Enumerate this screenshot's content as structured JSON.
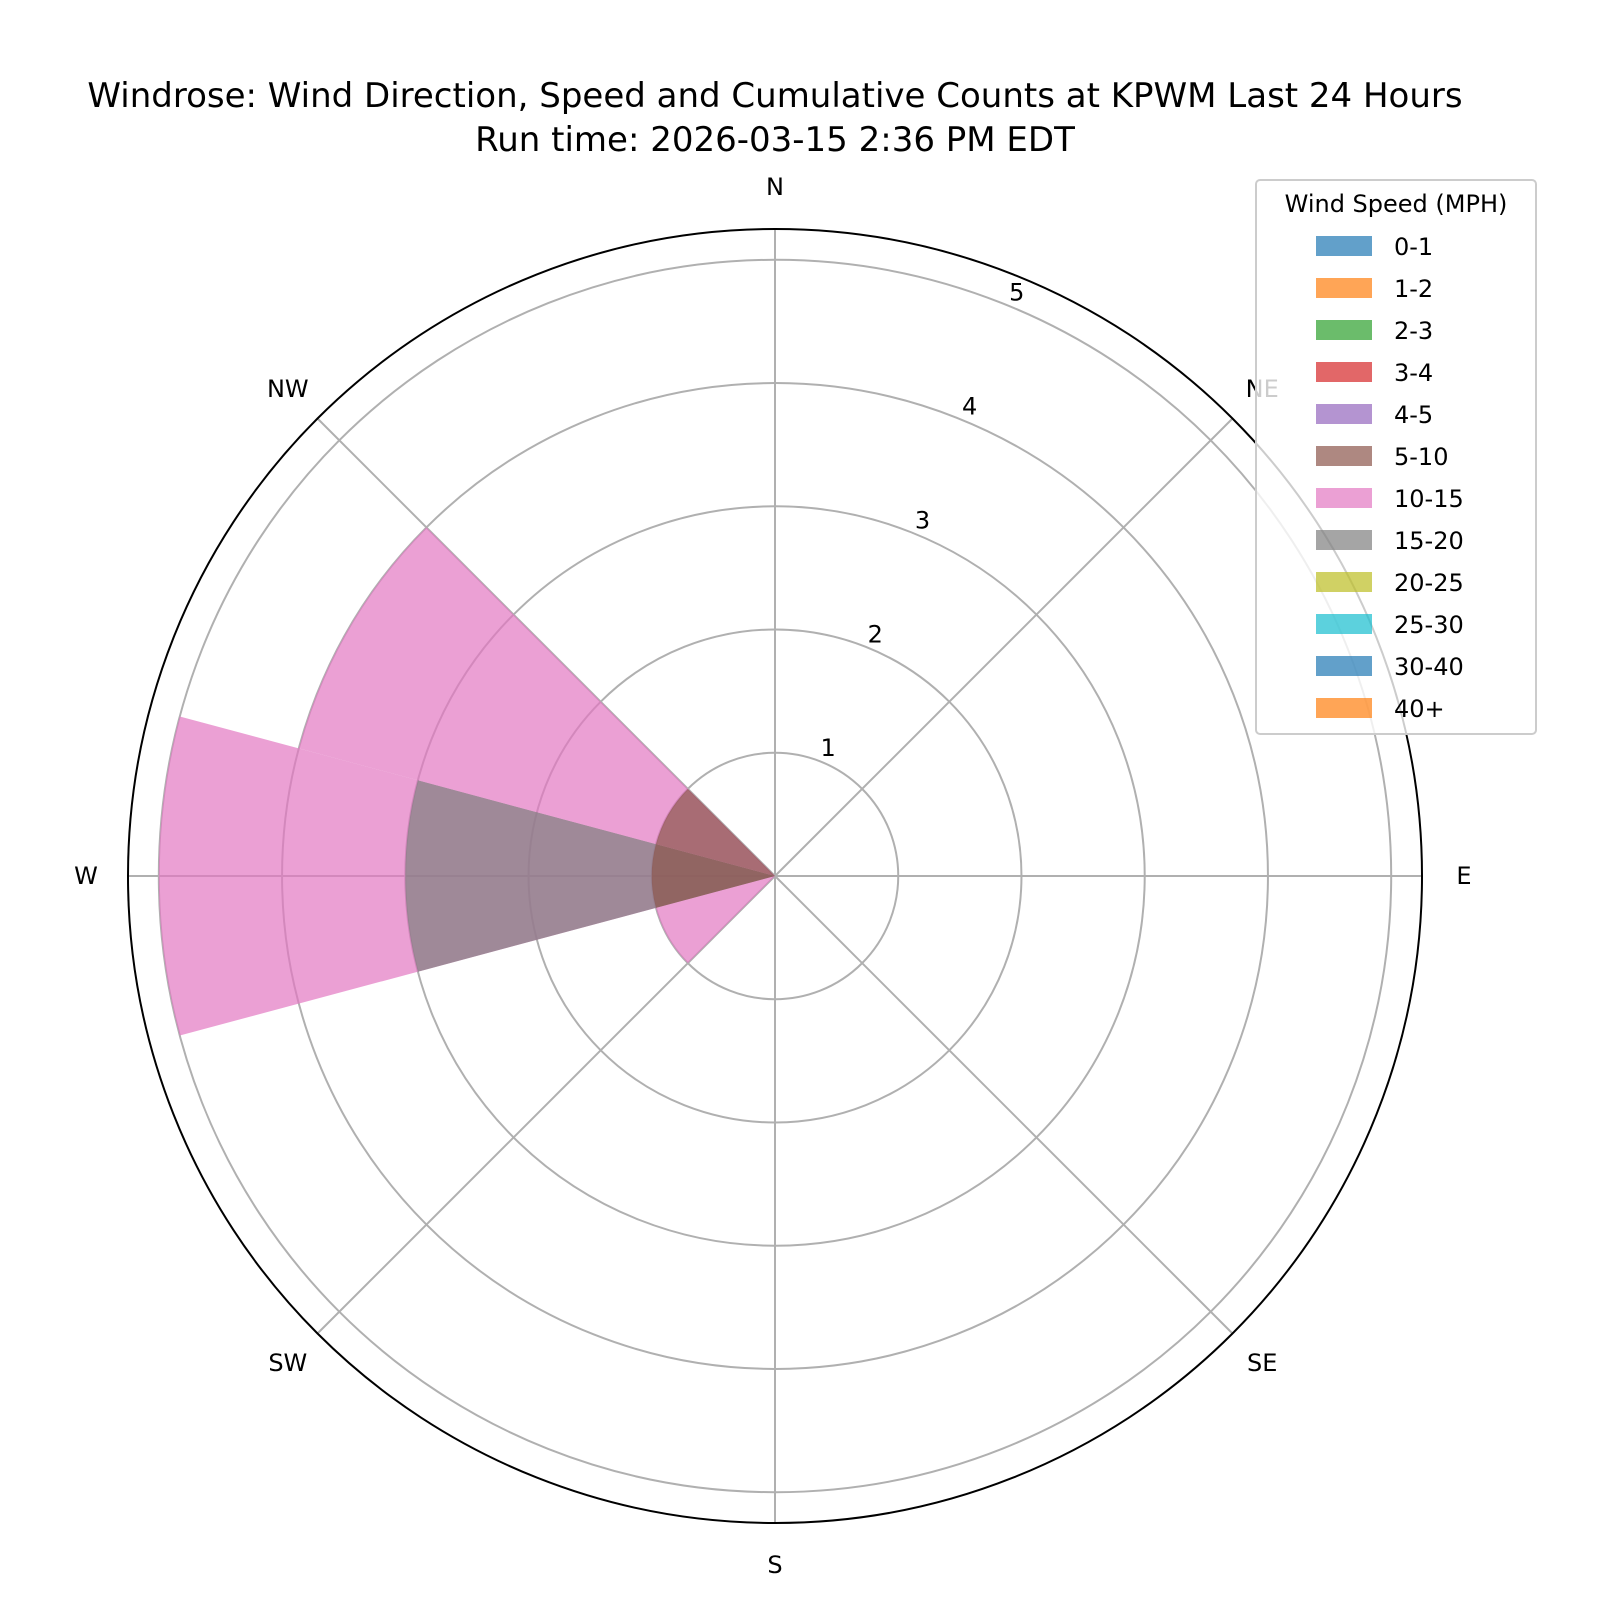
{
  "title": {
    "line1": "Windrose: Wind Direction, Speed and Cumulative Counts at KPWM Last 24 Hours",
    "line2": "Run time: 2026-03-15 2:36 PM EDT"
  },
  "chart_data": {
    "type": "windrose",
    "directions": [
      "N",
      "NE",
      "E",
      "SE",
      "S",
      "SW",
      "W",
      "NW"
    ],
    "direction_angles_deg": [
      0,
      45,
      90,
      135,
      180,
      225,
      270,
      315
    ],
    "radial_ticks": [
      1,
      2,
      3,
      4,
      5
    ],
    "rmax": 5.25,
    "grid": true,
    "legend": {
      "title": "Wind Speed (MPH)",
      "placement": "top-right",
      "entries": [
        {
          "label": "0-1",
          "color": "#1f77b4"
        },
        {
          "label": "1-2",
          "color": "#ff7f0e"
        },
        {
          "label": "2-3",
          "color": "#2ca02c"
        },
        {
          "label": "3-4",
          "color": "#d62728"
        },
        {
          "label": "4-5",
          "color": "#9467bd"
        },
        {
          "label": "5-10",
          "color": "#8c564b"
        },
        {
          "label": "10-15",
          "color": "#e377c2"
        },
        {
          "label": "15-20",
          "color": "#7f7f7f"
        },
        {
          "label": "20-25",
          "color": "#bcbd22"
        },
        {
          "label": "25-30",
          "color": "#17becf"
        },
        {
          "label": "30-40",
          "color": "#1f77b4"
        },
        {
          "label": "40+",
          "color": "#ff7f0e"
        }
      ]
    },
    "bar_alpha": 0.7,
    "wedges": [
      {
        "direction_deg": 270,
        "speed_bin": "10-15",
        "count": 5,
        "color": "#e377c2"
      },
      {
        "direction_deg": 270,
        "speed_bin": "15-20",
        "count": 3,
        "color": "#7f7f7f"
      },
      {
        "direction_deg": 300,
        "speed_bin": "10-15",
        "count": 4,
        "color": "#e377c2"
      },
      {
        "direction_deg": 300,
        "speed_bin": "5-10",
        "count": 1,
        "color": "#8c564b"
      },
      {
        "direction_deg": 240,
        "speed_bin": "10-15",
        "count": 1,
        "color": "#e377c2"
      },
      {
        "direction_deg": 270,
        "speed_bin": "5-10",
        "count": 1,
        "color": "#8c564b"
      }
    ],
    "wedge_half_width_deg": 15
  }
}
